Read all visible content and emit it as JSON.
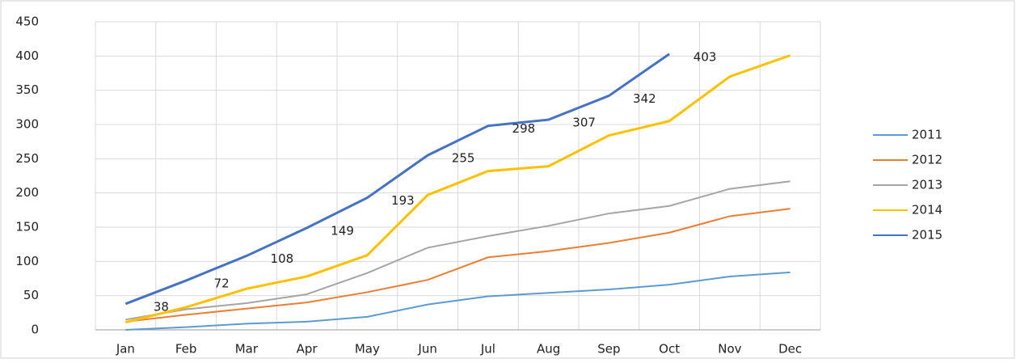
{
  "chart_data": {
    "type": "line",
    "categories": [
      "Jan",
      "Feb",
      "Mar",
      "Apr",
      "May",
      "Jun",
      "Jul",
      "Aug",
      "Sep",
      "Oct",
      "Nov",
      "Dec"
    ],
    "series": [
      {
        "name": "2011",
        "color": "#5b9bd5",
        "values": [
          0,
          4,
          9,
          12,
          19,
          37,
          49,
          54,
          59,
          66,
          78,
          84
        ]
      },
      {
        "name": "2012",
        "color": "#ed7d31",
        "values": [
          12,
          22,
          31,
          40,
          55,
          73,
          106,
          115,
          127,
          142,
          166,
          177
        ]
      },
      {
        "name": "2013",
        "color": "#a5a5a5",
        "values": [
          15,
          30,
          39,
          52,
          83,
          120,
          137,
          152,
          170,
          181,
          206,
          217
        ]
      },
      {
        "name": "2014",
        "color": "#ffc000",
        "values": [
          11,
          33,
          60,
          78,
          109,
          197,
          232,
          239,
          284,
          305,
          370,
          401
        ]
      },
      {
        "name": "2015",
        "color": "#4472c4",
        "values": [
          38,
          72,
          108,
          149,
          193,
          255,
          298,
          307,
          342,
          403,
          null,
          null
        ],
        "data_labels": true
      }
    ],
    "ylim": [
      0,
      450
    ],
    "yticks": [
      0,
      50,
      100,
      150,
      200,
      250,
      300,
      350,
      400,
      450
    ],
    "grid": true,
    "legend": "right"
  }
}
